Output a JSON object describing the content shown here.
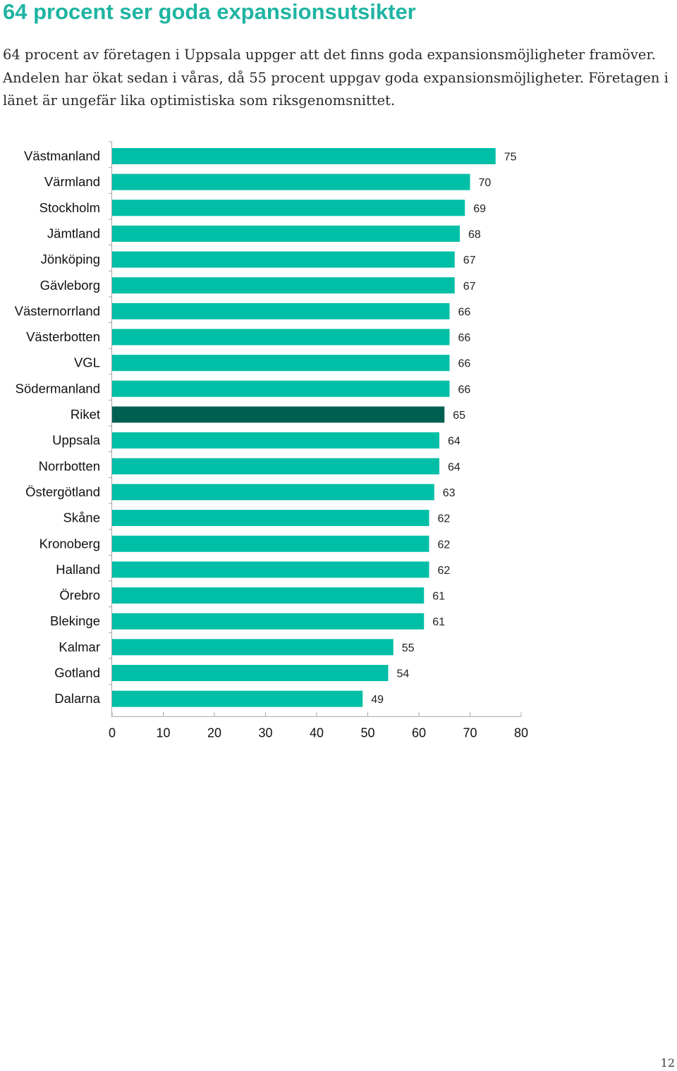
{
  "page": {
    "heading": "64 procent ser goda expansionsutsikter",
    "intro": "64 procent av företagen i Uppsala uppger att det finns goda expansionsmöjligheter framöver. Andelen har ökat sedan i våras, då 55 procent uppgav goda expansionsmöjligheter. Företagen i länet är ungefär lika optimistiska som riksgenomsnittet.",
    "page_number": "12"
  },
  "colors": {
    "heading": "#1fb4a2",
    "bar": "#00bfa6",
    "highlight_bar": "#005f53",
    "axis": "#a6a6a6"
  },
  "chart_data": {
    "type": "bar",
    "orientation": "horizontal",
    "title": "",
    "xlabel": "",
    "ylabel": "",
    "xlim": [
      0,
      80
    ],
    "x_ticks": [
      0,
      10,
      20,
      30,
      40,
      50,
      60,
      70,
      80
    ],
    "grid": false,
    "legend": "none",
    "highlight": "Riket",
    "categories": [
      "Västmanland",
      "Värmland",
      "Stockholm",
      "Jämtland",
      "Jönköping",
      "Gävleborg",
      "Västernorrland",
      "Västerbotten",
      "VGL",
      "Södermanland",
      "Riket",
      "Uppsala",
      "Norrbotten",
      "Östergötland",
      "Skåne",
      "Kronoberg",
      "Halland",
      "Örebro",
      "Blekinge",
      "Kalmar",
      "Gotland",
      "Dalarna"
    ],
    "values": [
      75,
      70,
      69,
      68,
      67,
      67,
      66,
      66,
      66,
      66,
      65,
      64,
      64,
      63,
      62,
      62,
      62,
      61,
      61,
      55,
      54,
      49
    ]
  }
}
